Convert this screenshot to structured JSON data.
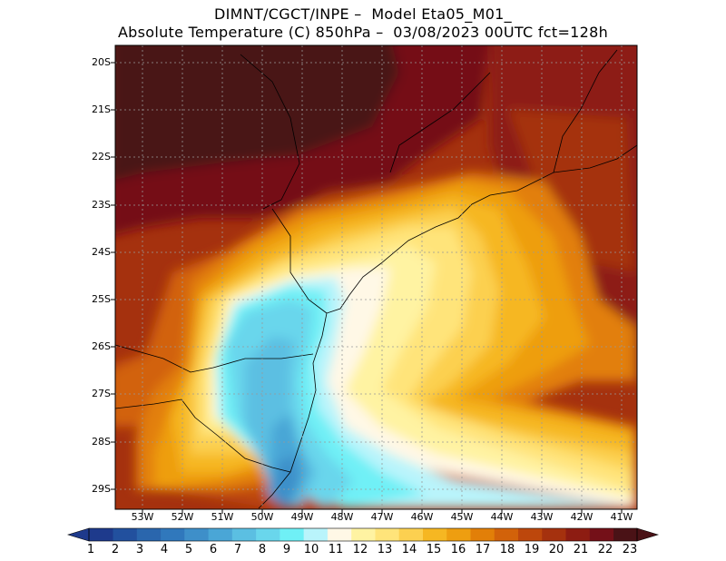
{
  "header": {
    "line1": "DIMNT/CGCT/INPE –  Model Eta05_M01_",
    "line2": "Absolute Temperature (C) 850hPa –  03/08/2023 00UTC fct=128h"
  },
  "axes": {
    "lat_labels": [
      "20S",
      "21S",
      "22S",
      "23S",
      "24S",
      "25S",
      "26S",
      "27S",
      "28S",
      "29S"
    ],
    "lon_labels": [
      "53W",
      "52W",
      "51W",
      "50W",
      "49W",
      "48W",
      "47W",
      "46W",
      "45W",
      "44W",
      "43W",
      "42W",
      "41W"
    ]
  },
  "colorbar": {
    "labels": [
      "1",
      "2",
      "3",
      "4",
      "5",
      "6",
      "7",
      "8",
      "9",
      "10",
      "11",
      "12",
      "13",
      "14",
      "15",
      "16",
      "17",
      "18",
      "19",
      "20",
      "21",
      "22",
      "23"
    ],
    "colors": [
      "#1e3a8c",
      "#22509e",
      "#2a66ad",
      "#3078bc",
      "#3e8fc9",
      "#4aa6d6",
      "#5bbfe2",
      "#69d6ec",
      "#6ff0f6",
      "#b9f4fb",
      "#fff8e6",
      "#fff3a2",
      "#ffe47a",
      "#fcd050",
      "#f6b722",
      "#ee9e10",
      "#e27f08",
      "#d2620a",
      "#bd470c",
      "#a5310e",
      "#8d1c12",
      "#741018",
      "#4a1216"
    ]
  },
  "colors": {
    "grid": "#999999",
    "border": "#000000"
  }
}
